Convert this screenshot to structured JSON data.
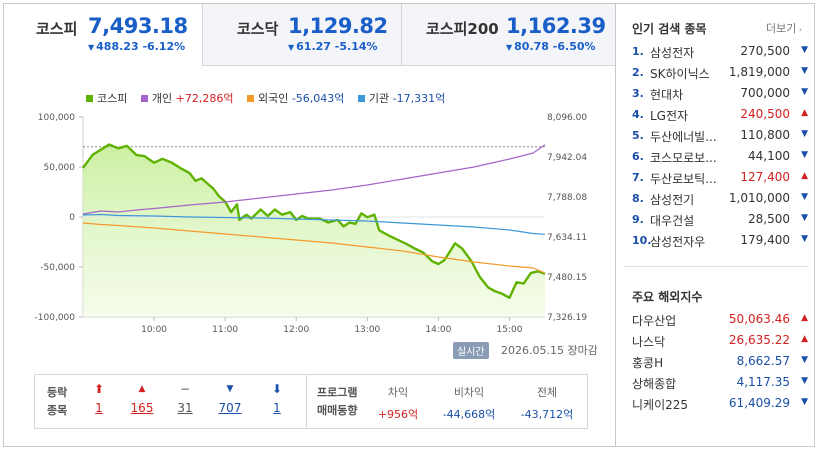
{
  "tabs": [
    {
      "name": "코스피",
      "value": "7,493.18",
      "change": "488.23",
      "pct": "-6.12%",
      "direction": "down",
      "active": true
    },
    {
      "name": "코스닥",
      "value": "1,129.82",
      "change": "61.27",
      "pct": "-5.14%",
      "direction": "down",
      "active": false
    },
    {
      "name": "코스피200",
      "value": "1,162.39",
      "change": "80.78",
      "pct": "-6.50%",
      "direction": "down",
      "active": false
    }
  ],
  "legend": {
    "kospi": "코스피",
    "individual": "개인",
    "individual_value": "+72,286억",
    "foreign": "외국인",
    "foreign_value": "-56,043억",
    "institution": "기관",
    "institution_value": "-17,331억"
  },
  "status": {
    "realtime_badge": "실시간",
    "date": "2026.05.15",
    "close_label": "장마감"
  },
  "colors": {
    "kospi": "#5fb300",
    "kospi_fill": "#c8ef9c",
    "individual": "#a466c8",
    "foreign": "#f39a2b",
    "institution": "#3d98d8",
    "up": "#d42020",
    "down": "#1a4fa9"
  },
  "chart_data": {
    "type": "line",
    "x_ticks": [
      "10:00",
      "11:00",
      "12:00",
      "13:00",
      "14:00",
      "15:00"
    ],
    "left_axis": {
      "ticks": [
        "100,000",
        "50,000",
        "0",
        "-50,000",
        "-100,000"
      ],
      "range": [
        -100000,
        100000
      ]
    },
    "right_axis": {
      "ticks": [
        "8,096.00",
        "7,942.04",
        "7,788.08",
        "7,634.11",
        "7,480.15",
        "7,326.19"
      ],
      "range": [
        7326.19,
        8096.0
      ]
    },
    "reference_line": 7981.41,
    "x_range": [
      "09:00",
      "15:30"
    ],
    "series": [
      {
        "name": "코스피",
        "axis": "right",
        "points": [
          [
            "09:00",
            7900
          ],
          [
            "09:08",
            7950
          ],
          [
            "09:15",
            7970
          ],
          [
            "09:22",
            7990
          ],
          [
            "09:30",
            7975
          ],
          [
            "09:37",
            7985
          ],
          [
            "09:45",
            7950
          ],
          [
            "09:52",
            7945
          ],
          [
            "10:00",
            7920
          ],
          [
            "10:07",
            7935
          ],
          [
            "10:15",
            7920
          ],
          [
            "10:22",
            7900
          ],
          [
            "10:30",
            7880
          ],
          [
            "10:35",
            7850
          ],
          [
            "10:40",
            7860
          ],
          [
            "10:45",
            7840
          ],
          [
            "10:50",
            7820
          ],
          [
            "10:55",
            7790
          ],
          [
            "11:00",
            7770
          ],
          [
            "11:05",
            7730
          ],
          [
            "11:10",
            7760
          ],
          [
            "11:12",
            7700
          ],
          [
            "11:18",
            7720
          ],
          [
            "11:22",
            7705
          ],
          [
            "11:30",
            7740
          ],
          [
            "11:36",
            7715
          ],
          [
            "11:42",
            7740
          ],
          [
            "11:48",
            7720
          ],
          [
            "11:55",
            7730
          ],
          [
            "12:00",
            7700
          ],
          [
            "12:05",
            7715
          ],
          [
            "12:10",
            7705
          ],
          [
            "12:20",
            7705
          ],
          [
            "12:27",
            7690
          ],
          [
            "12:35",
            7700
          ],
          [
            "12:40",
            7675
          ],
          [
            "12:45",
            7690
          ],
          [
            "12:50",
            7685
          ],
          [
            "12:55",
            7725
          ],
          [
            "13:00",
            7710
          ],
          [
            "13:06",
            7720
          ],
          [
            "13:10",
            7660
          ],
          [
            "13:18",
            7640
          ],
          [
            "13:25",
            7625
          ],
          [
            "13:32",
            7610
          ],
          [
            "13:40",
            7590
          ],
          [
            "13:47",
            7575
          ],
          [
            "13:55",
            7540
          ],
          [
            "14:00",
            7530
          ],
          [
            "14:05",
            7545
          ],
          [
            "14:10",
            7580
          ],
          [
            "14:14",
            7610
          ],
          [
            "14:20",
            7590
          ],
          [
            "14:28",
            7540
          ],
          [
            "14:35",
            7480
          ],
          [
            "14:42",
            7440
          ],
          [
            "14:48",
            7425
          ],
          [
            "14:54",
            7415
          ],
          [
            "15:00",
            7400
          ],
          [
            "15:06",
            7460
          ],
          [
            "15:12",
            7455
          ],
          [
            "15:18",
            7495
          ],
          [
            "15:24",
            7502
          ],
          [
            "15:30",
            7493
          ]
        ]
      },
      {
        "name": "개인",
        "axis": "left",
        "points": [
          [
            "09:00",
            3000
          ],
          [
            "09:15",
            6000
          ],
          [
            "09:30",
            5000
          ],
          [
            "09:45",
            7000
          ],
          [
            "10:00",
            8500
          ],
          [
            "10:30",
            12000
          ],
          [
            "11:00",
            15000
          ],
          [
            "11:30",
            19000
          ],
          [
            "12:00",
            23000
          ],
          [
            "12:30",
            27000
          ],
          [
            "13:00",
            32000
          ],
          [
            "13:30",
            38000
          ],
          [
            "14:00",
            44000
          ],
          [
            "14:30",
            50000
          ],
          [
            "15:00",
            58000
          ],
          [
            "15:20",
            64000
          ],
          [
            "15:30",
            72286
          ]
        ]
      },
      {
        "name": "외국인",
        "axis": "left",
        "points": [
          [
            "09:00",
            -6000
          ],
          [
            "09:15",
            -7500
          ],
          [
            "09:30",
            -8500
          ],
          [
            "10:00",
            -11000
          ],
          [
            "10:30",
            -14000
          ],
          [
            "11:00",
            -17000
          ],
          [
            "11:30",
            -20000
          ],
          [
            "12:00",
            -23000
          ],
          [
            "12:30",
            -26000
          ],
          [
            "13:00",
            -30000
          ],
          [
            "13:30",
            -34000
          ],
          [
            "14:00",
            -40000
          ],
          [
            "14:30",
            -45000
          ],
          [
            "15:00",
            -49000
          ],
          [
            "15:20",
            -51000
          ],
          [
            "15:30",
            -56043
          ]
        ]
      },
      {
        "name": "기관",
        "axis": "left",
        "points": [
          [
            "09:00",
            2000
          ],
          [
            "09:15",
            2500
          ],
          [
            "09:30",
            1500
          ],
          [
            "10:00",
            1000
          ],
          [
            "10:30",
            0
          ],
          [
            "11:00",
            -500
          ],
          [
            "11:30",
            -1000
          ],
          [
            "12:00",
            -2000
          ],
          [
            "12:30",
            -3000
          ],
          [
            "13:00",
            -4000
          ],
          [
            "13:30",
            -6000
          ],
          [
            "14:00",
            -8000
          ],
          [
            "14:30",
            -10000
          ],
          [
            "15:00",
            -13000
          ],
          [
            "15:20",
            -16500
          ],
          [
            "15:30",
            -17331
          ]
        ]
      }
    ]
  },
  "updown": {
    "label_line1": "등락",
    "label_line2": "종목",
    "items": [
      {
        "icon": "⬆",
        "count": "1",
        "color": "#d42020",
        "name": "upper-limit"
      },
      {
        "icon": "▲",
        "count": "165",
        "color": "#d42020",
        "name": "rise"
      },
      {
        "icon": "−",
        "count": "31",
        "color": "#555555",
        "name": "flat"
      },
      {
        "icon": "▼",
        "count": "707",
        "color": "#1a4fa9",
        "name": "fall"
      },
      {
        "icon": "⬇",
        "count": "1",
        "color": "#1a4fa9",
        "name": "lower-limit"
      }
    ]
  },
  "program": {
    "label_line1": "프로그램",
    "label_line2": "매매동향",
    "columns": [
      {
        "header": "차익",
        "value": "+956억",
        "direction": "up"
      },
      {
        "header": "비차익",
        "value": "-44,668억",
        "direction": "down"
      },
      {
        "header": "전체",
        "value": "-43,712억",
        "direction": "down"
      }
    ]
  },
  "popular": {
    "title": "인기 검색 종목",
    "more": "더보기",
    "items": [
      {
        "rank": "1.",
        "name": "삼성전자",
        "price": "270,500",
        "direction": "down"
      },
      {
        "rank": "2.",
        "name": "SK하이닉스",
        "price": "1,819,000",
        "direction": "down"
      },
      {
        "rank": "3.",
        "name": "현대차",
        "price": "700,000",
        "direction": "down"
      },
      {
        "rank": "4.",
        "name": "LG전자",
        "price": "240,500",
        "direction": "up"
      },
      {
        "rank": "5.",
        "name": "두산에너빌...",
        "price": "110,800",
        "direction": "down"
      },
      {
        "rank": "6.",
        "name": "코스모로보...",
        "price": "44,100",
        "direction": "down"
      },
      {
        "rank": "7.",
        "name": "두산로보틱...",
        "price": "127,400",
        "direction": "up"
      },
      {
        "rank": "8.",
        "name": "삼성전기",
        "price": "1,010,000",
        "direction": "down"
      },
      {
        "rank": "9.",
        "name": "대우건설",
        "price": "28,500",
        "direction": "down"
      },
      {
        "rank": "10.",
        "name": "삼성전자우",
        "price": "179,400",
        "direction": "down"
      }
    ]
  },
  "world": {
    "title": "주요 해외지수",
    "items": [
      {
        "name": "다우산업",
        "value": "50,063.46",
        "direction": "up"
      },
      {
        "name": "나스닥",
        "value": "26,635.22",
        "direction": "up"
      },
      {
        "name": "홍콩H",
        "value": "8,662.57",
        "direction": "down"
      },
      {
        "name": "상해종합",
        "value": "4,117.35",
        "direction": "down"
      },
      {
        "name": "니케이225",
        "value": "61,409.29",
        "direction": "down"
      }
    ]
  }
}
